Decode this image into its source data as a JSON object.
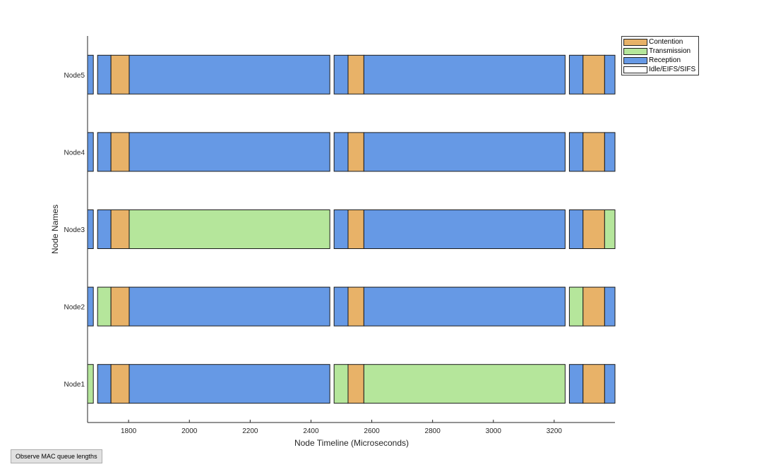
{
  "chart_data": {
    "type": "timeline",
    "xlabel": "Node Timeline (Microseconds)",
    "ylabel": "Node Names",
    "xlim": [
      1665,
      3400
    ],
    "xticks": [
      1800,
      2000,
      2200,
      2400,
      2600,
      2800,
      3000,
      3200
    ],
    "categories": [
      "Node5",
      "Node4",
      "Node3",
      "Node2",
      "Node1"
    ],
    "state_colors": {
      "Contention": "#e8b268",
      "Transmission": "#b5e69b",
      "Reception": "#6699e5",
      "Idle/EIFS/SIFS": "#ffffff"
    },
    "legend_position": "top-right",
    "series": [
      {
        "name": "Node5",
        "segments": [
          {
            "start": 1665,
            "end": 1684,
            "state": "Reception"
          },
          {
            "start": 1698,
            "end": 1742,
            "state": "Reception"
          },
          {
            "start": 1742,
            "end": 1802,
            "state": "Contention"
          },
          {
            "start": 1802,
            "end": 2462,
            "state": "Reception"
          },
          {
            "start": 2476,
            "end": 2522,
            "state": "Reception"
          },
          {
            "start": 2522,
            "end": 2574,
            "state": "Contention"
          },
          {
            "start": 2574,
            "end": 3236,
            "state": "Reception"
          },
          {
            "start": 3250,
            "end": 3295,
            "state": "Reception"
          },
          {
            "start": 3295,
            "end": 3366,
            "state": "Contention"
          },
          {
            "start": 3366,
            "end": 3400,
            "state": "Reception"
          }
        ]
      },
      {
        "name": "Node4",
        "segments": [
          {
            "start": 1665,
            "end": 1684,
            "state": "Reception"
          },
          {
            "start": 1698,
            "end": 1742,
            "state": "Reception"
          },
          {
            "start": 1742,
            "end": 1802,
            "state": "Contention"
          },
          {
            "start": 1802,
            "end": 2462,
            "state": "Reception"
          },
          {
            "start": 2476,
            "end": 2522,
            "state": "Reception"
          },
          {
            "start": 2522,
            "end": 2574,
            "state": "Contention"
          },
          {
            "start": 2574,
            "end": 3236,
            "state": "Reception"
          },
          {
            "start": 3250,
            "end": 3295,
            "state": "Reception"
          },
          {
            "start": 3295,
            "end": 3366,
            "state": "Contention"
          },
          {
            "start": 3366,
            "end": 3400,
            "state": "Reception"
          }
        ]
      },
      {
        "name": "Node3",
        "segments": [
          {
            "start": 1665,
            "end": 1684,
            "state": "Reception"
          },
          {
            "start": 1698,
            "end": 1742,
            "state": "Reception"
          },
          {
            "start": 1742,
            "end": 1802,
            "state": "Contention"
          },
          {
            "start": 1802,
            "end": 2462,
            "state": "Transmission"
          },
          {
            "start": 2476,
            "end": 2522,
            "state": "Reception"
          },
          {
            "start": 2522,
            "end": 2574,
            "state": "Contention"
          },
          {
            "start": 2574,
            "end": 3236,
            "state": "Reception"
          },
          {
            "start": 3250,
            "end": 3295,
            "state": "Reception"
          },
          {
            "start": 3295,
            "end": 3366,
            "state": "Contention"
          },
          {
            "start": 3366,
            "end": 3400,
            "state": "Transmission"
          }
        ]
      },
      {
        "name": "Node2",
        "segments": [
          {
            "start": 1665,
            "end": 1684,
            "state": "Reception"
          },
          {
            "start": 1698,
            "end": 1742,
            "state": "Transmission"
          },
          {
            "start": 1742,
            "end": 1802,
            "state": "Contention"
          },
          {
            "start": 1802,
            "end": 2462,
            "state": "Reception"
          },
          {
            "start": 2476,
            "end": 2522,
            "state": "Reception"
          },
          {
            "start": 2522,
            "end": 2574,
            "state": "Contention"
          },
          {
            "start": 2574,
            "end": 3236,
            "state": "Reception"
          },
          {
            "start": 3250,
            "end": 3295,
            "state": "Transmission"
          },
          {
            "start": 3295,
            "end": 3366,
            "state": "Contention"
          },
          {
            "start": 3366,
            "end": 3400,
            "state": "Reception"
          }
        ]
      },
      {
        "name": "Node1",
        "segments": [
          {
            "start": 1665,
            "end": 1684,
            "state": "Transmission"
          },
          {
            "start": 1698,
            "end": 1742,
            "state": "Reception"
          },
          {
            "start": 1742,
            "end": 1802,
            "state": "Contention"
          },
          {
            "start": 1802,
            "end": 2462,
            "state": "Reception"
          },
          {
            "start": 2476,
            "end": 2522,
            "state": "Transmission"
          },
          {
            "start": 2522,
            "end": 2574,
            "state": "Contention"
          },
          {
            "start": 2574,
            "end": 3236,
            "state": "Transmission"
          },
          {
            "start": 3250,
            "end": 3295,
            "state": "Reception"
          },
          {
            "start": 3295,
            "end": 3366,
            "state": "Contention"
          },
          {
            "start": 3366,
            "end": 3400,
            "state": "Reception"
          }
        ]
      }
    ]
  },
  "legend": {
    "items": [
      {
        "label": "Contention",
        "color": "#e8b268"
      },
      {
        "label": "Transmission",
        "color": "#b5e69b"
      },
      {
        "label": "Reception",
        "color": "#6699e5"
      },
      {
        "label": "Idle/EIFS/SIFS",
        "color": "#ffffff"
      }
    ]
  },
  "controls": {
    "queue_button_label": "Observe MAC queue lengths"
  }
}
